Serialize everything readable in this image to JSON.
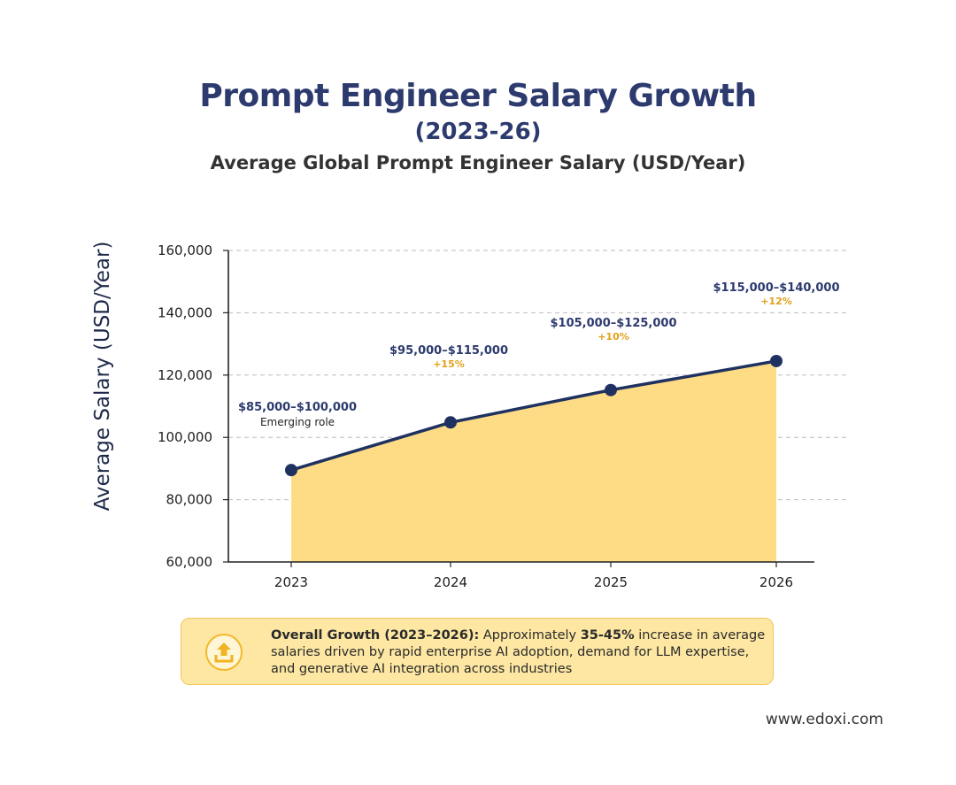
{
  "chart_data": {
    "type": "area",
    "title": "Prompt Engineer Salary Growth",
    "title_years": "(2023-26)",
    "subtitle": "Average Global Prompt Engineer Salary (USD/Year)",
    "ylabel": "Average  Salary (USD/Year)",
    "xlabel": "",
    "categories": [
      "2023",
      "2024",
      "2025",
      "2026"
    ],
    "values": [
      89500,
      104800,
      115200,
      124500
    ],
    "ylim": [
      60000,
      160000
    ],
    "yticks": [
      60000,
      80000,
      100000,
      120000,
      140000,
      160000
    ],
    "ytick_labels": [
      "60,000",
      "80,000",
      "100,000",
      "120,000",
      "140,000",
      "160,000"
    ],
    "grid": true,
    "annotations": [
      {
        "range": "$85,000–$100,000",
        "note": "Emerging role"
      },
      {
        "range": "$95,000–$115,000",
        "note": "+15%"
      },
      {
        "range": "$105,000–$125,000",
        "note": "+10%"
      },
      {
        "range": "$115,000–$140,000",
        "note": "+12%"
      }
    ],
    "colors": {
      "line": "#1e3160",
      "fill": "#fddc85",
      "annotation_range": "#2c3a6e",
      "annotation_growth": "#e0a019",
      "annotation_note": "#222222"
    }
  },
  "callout": {
    "icon": "upload-arrow-icon",
    "lead": "Overall Growth (2023–2026):",
    "text_before": " Approximately ",
    "highlight": "35-45%",
    "text_after": " increase in average salaries driven by rapid enterprise AI adoption, demand for LLM expertise, and generative AI integration across industries"
  },
  "footer": {
    "website": "www.edoxi.com"
  }
}
